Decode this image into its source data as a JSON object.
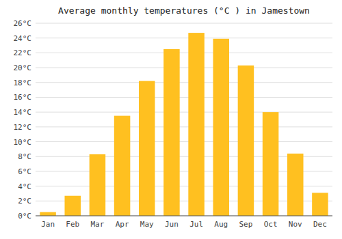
{
  "chart_data": {
    "type": "bar",
    "title": "Average monthly temperatures (°C ) in Jamestown",
    "categories": [
      "Jan",
      "Feb",
      "Mar",
      "Apr",
      "May",
      "Jun",
      "Jul",
      "Aug",
      "Sep",
      "Oct",
      "Nov",
      "Dec"
    ],
    "values": [
      0.5,
      2.7,
      8.3,
      13.5,
      18.2,
      22.5,
      24.7,
      23.9,
      20.3,
      14.0,
      8.4,
      3.1
    ],
    "color": "#FFC020",
    "ylim": [
      0,
      26
    ],
    "yticks": [
      {
        "value": 0,
        "label": "0°C"
      },
      {
        "value": 2,
        "label": "2°C"
      },
      {
        "value": 4,
        "label": "4°C"
      },
      {
        "value": 6,
        "label": "6°C"
      },
      {
        "value": 8,
        "label": "8°C"
      },
      {
        "value": 10,
        "label": "10°C"
      },
      {
        "value": 12,
        "label": "12°C"
      },
      {
        "value": 14,
        "label": "14°C"
      },
      {
        "value": 16,
        "label": "16°C"
      },
      {
        "value": 18,
        "label": "18°C"
      },
      {
        "value": 20,
        "label": "20°C"
      },
      {
        "value": 22,
        "label": "22°C"
      },
      {
        "value": 24,
        "label": "24°C"
      },
      {
        "value": 26,
        "label": "26°C"
      }
    ],
    "grid": true
  }
}
